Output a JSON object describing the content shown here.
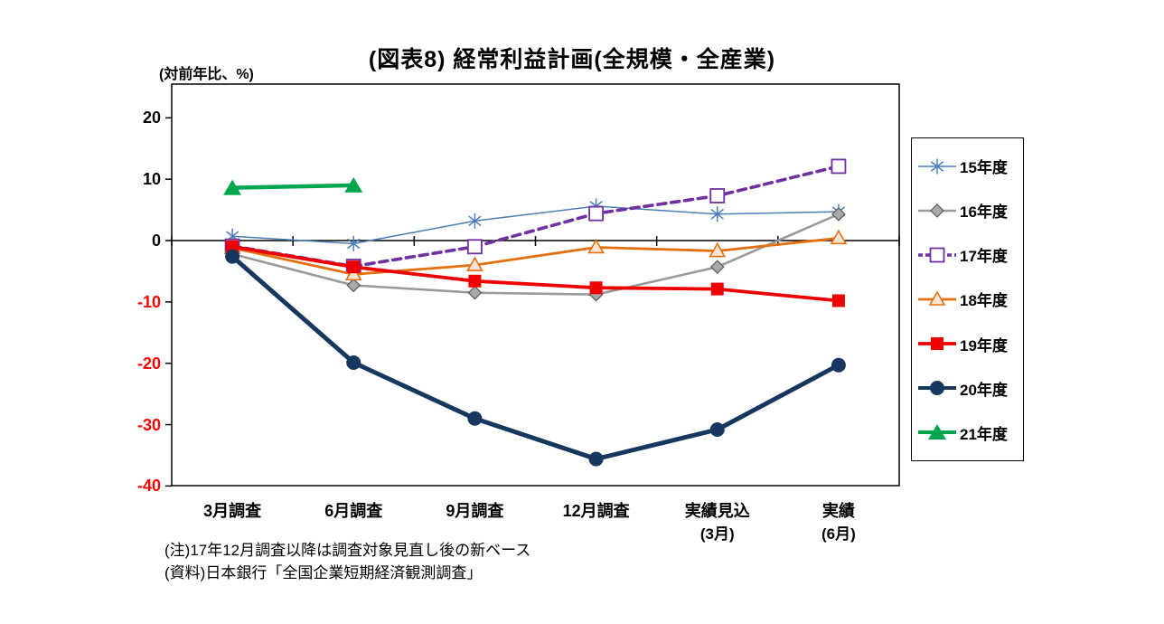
{
  "notes": [
    "(注)17年12月調査以降は調査対象見直し後の新ベース",
    "(資料)日本銀行「全国企業短期経済観測調査」"
  ],
  "chart_data": {
    "type": "line",
    "title": "(図表8) 経常利益計画(全規模・全産業)",
    "y_unit_label": "(対前年比、%)",
    "categories": [
      {
        "label": "3月調査",
        "sub": ""
      },
      {
        "label": "6月調査",
        "sub": ""
      },
      {
        "label": "9月調査",
        "sub": ""
      },
      {
        "label": "12月調査",
        "sub": ""
      },
      {
        "label": "実績見込",
        "sub": "(3月)"
      },
      {
        "label": "実績",
        "sub": "(6月)"
      }
    ],
    "y_axis": {
      "ticks": [
        20,
        10,
        0,
        -10,
        -20,
        -30,
        -40
      ],
      "min": -40,
      "max": 25,
      "negative_tick_color": "#FF0000",
      "positive_tick_color": "#000000"
    },
    "legend_position": "right",
    "grid": "zero-line-only",
    "series": [
      {
        "key": "fy15",
        "name": "15年度",
        "color": "#4A7EBB",
        "line_width": 1.5,
        "dash": null,
        "marker": "asterisk",
        "values": [
          0.7,
          -0.5,
          3.2,
          5.6,
          4.3,
          4.7
        ]
      },
      {
        "key": "fy16",
        "name": "16年度",
        "color": "#9A9A9A",
        "line_width": 2.6,
        "dash": null,
        "marker": "diamond",
        "marker_fill": "#A8A8A8",
        "marker_stroke": "#5A5A5A",
        "values": [
          -2.2,
          -7.3,
          -8.5,
          -8.8,
          -4.3,
          4.3
        ]
      },
      {
        "key": "fy17",
        "name": "17年度",
        "color": "#7030A0",
        "line_width": 3.6,
        "dash": "9,6",
        "marker": "open-square",
        "marker_fill": "#FFFFFF",
        "values": [
          -0.9,
          -4.2,
          -1.0,
          4.4,
          7.3,
          12.1
        ]
      },
      {
        "key": "fy18",
        "name": "18年度",
        "color": "#E2700F",
        "line_width": 2.8,
        "dash": null,
        "marker": "open-triangle",
        "marker_fill": "#FCE5D4",
        "marker_stroke": "#E2700F",
        "values": [
          -1.2,
          -5.5,
          -4.0,
          -1.1,
          -1.7,
          0.4
        ]
      },
      {
        "key": "fy19",
        "name": "19年度",
        "color": "#EE0000",
        "line_width": 3.8,
        "dash": null,
        "marker": "square",
        "values": [
          -1.0,
          -4.3,
          -6.6,
          -7.7,
          -7.9,
          -9.8
        ]
      },
      {
        "key": "fy20",
        "name": "20年度",
        "color": "#17375E",
        "line_width": 5,
        "dash": null,
        "marker": "circle",
        "values": [
          -2.6,
          -19.9,
          -29.0,
          -35.6,
          -30.8,
          -20.3
        ]
      },
      {
        "key": "fy21",
        "name": "21年度",
        "color": "#00A550",
        "line_width": 4.5,
        "dash": null,
        "marker": "triangle",
        "values": [
          8.6,
          9.0,
          null,
          null,
          null,
          null
        ]
      }
    ]
  }
}
